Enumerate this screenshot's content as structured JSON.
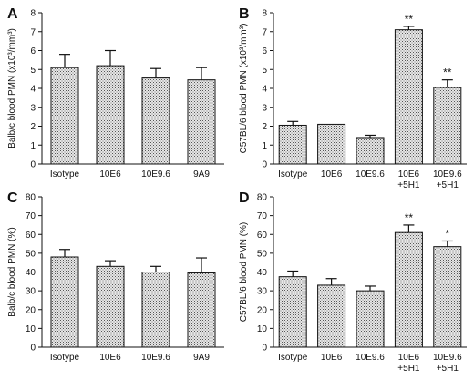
{
  "chart_data": [
    {
      "panel": "A",
      "type": "bar",
      "ylabel": "Balb/c blood PMN (x10³/mm³)",
      "ylim": [
        0,
        8
      ],
      "yticks": [
        0,
        1,
        2,
        3,
        4,
        5,
        6,
        7,
        8
      ],
      "categories": [
        [
          "Isotype"
        ],
        [
          "10E6"
        ],
        [
          "10E9.6"
        ],
        [
          "9A9"
        ]
      ],
      "values": [
        5.1,
        5.2,
        4.55,
        4.45
      ],
      "errors": [
        0.7,
        0.8,
        0.5,
        0.65
      ],
      "annotations": [
        "",
        "",
        "",
        ""
      ]
    },
    {
      "panel": "B",
      "type": "bar",
      "ylabel": "C57BL/6 blood PMN (x10³/mm³)",
      "ylim": [
        0,
        8
      ],
      "yticks": [
        0,
        1,
        2,
        3,
        4,
        5,
        6,
        7,
        8
      ],
      "categories": [
        [
          "Isotype"
        ],
        [
          "10E6"
        ],
        [
          "10E9.6"
        ],
        [
          "10E6",
          "+5H1"
        ],
        [
          "10E9.6",
          "+5H1"
        ]
      ],
      "values": [
        2.05,
        2.1,
        1.4,
        7.1,
        4.05
      ],
      "errors": [
        0.2,
        0.0,
        0.12,
        0.18,
        0.4
      ],
      "annotations": [
        "",
        "",
        "",
        "**",
        "**"
      ]
    },
    {
      "panel": "C",
      "type": "bar",
      "ylabel": "Balb/c blood PMN (%)",
      "ylim": [
        0,
        80
      ],
      "yticks": [
        0,
        10,
        20,
        30,
        40,
        50,
        60,
        70,
        80
      ],
      "categories": [
        [
          "Isotype"
        ],
        [
          "10E6"
        ],
        [
          "10E9.6"
        ],
        [
          "9A9"
        ]
      ],
      "values": [
        48,
        43,
        40,
        39.5
      ],
      "errors": [
        4,
        3,
        3,
        8
      ],
      "annotations": [
        "",
        "",
        "",
        ""
      ]
    },
    {
      "panel": "D",
      "type": "bar",
      "ylabel": "C57BL/6 blood PMN (%)",
      "ylim": [
        0,
        80
      ],
      "yticks": [
        0,
        10,
        20,
        30,
        40,
        50,
        60,
        70,
        80
      ],
      "categories": [
        [
          "Isotype"
        ],
        [
          "10E6"
        ],
        [
          "10E9.6"
        ],
        [
          "10E6",
          "+5H1"
        ],
        [
          "10E9.6",
          "+5H1"
        ]
      ],
      "values": [
        37.5,
        33,
        30,
        61,
        53.5
      ],
      "errors": [
        3,
        3.5,
        2.5,
        4,
        3
      ],
      "annotations": [
        "",
        "",
        "",
        "**",
        "*"
      ]
    }
  ]
}
